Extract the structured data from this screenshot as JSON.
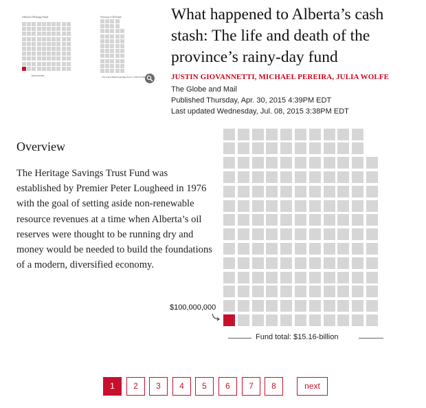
{
  "thumbnails": [
    {
      "caption": "Alberta's Heritage Fund",
      "note": "$100,000,000"
    },
    {
      "caption": "Norway's Oil Fund",
      "note": "The entire Alberta Heritage Fund, or $15.16 billion"
    }
  ],
  "article": {
    "title": "What happened to Alberta’s cash stash: The life and death of the province’s rainy-day fund",
    "authors": "JUSTIN GIOVANNETTI, MICHAEL PEREIRA, JULIA WOLFE",
    "publisher": "The Globe and Mail",
    "published": "Published Thursday, Apr. 30, 2015 4:39PM EDT",
    "updated": "Last updated Wednesday, Jul. 08, 2015 3:38PM EDT"
  },
  "overview": {
    "heading": "Overview",
    "body": "The Heritage Savings Trust Fund was established by Premier Peter Lougheed in 1976 with the goal of setting aside non-renewable resource revenues at a time when Alberta’s oil reserves were thought to be running dry and money would be needed to build the foundations of a modern, diversified economy."
  },
  "chart_data": {
    "type": "waffle",
    "unit_label": "$100,000,000",
    "unit_value": 100000000,
    "columns": [
      14,
      14,
      14,
      14,
      14,
      14,
      14,
      14,
      14,
      14,
      12
    ],
    "highlighted_cells": 1,
    "total_label": "Fund total: $15.16-billion",
    "colors": {
      "cell": "#d6d6d6",
      "highlight": "#c8102e"
    }
  },
  "pagination": {
    "pages": [
      "1",
      "2",
      "3",
      "4",
      "5",
      "6",
      "7",
      "8"
    ],
    "current": "1",
    "next_label": "next"
  },
  "colors": {
    "accent": "#c8102e"
  }
}
